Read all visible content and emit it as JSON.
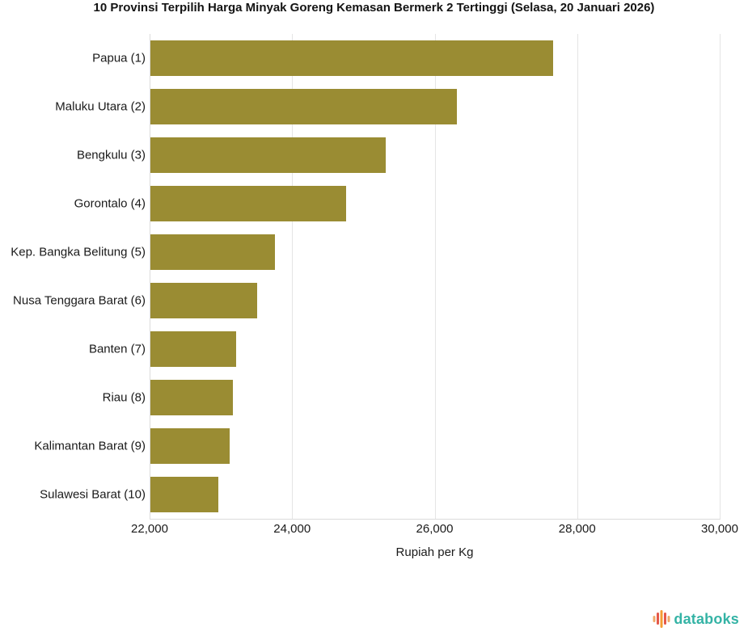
{
  "title": "10 Provinsi Terpilih Harga Minyak Goreng Kemasan Bermerk 2 Tertinggi (Selasa, 20 Januari 2026)",
  "chart_data": {
    "type": "bar",
    "orientation": "horizontal",
    "categories": [
      "Papua (1)",
      "Maluku Utara (2)",
      "Bengkulu (3)",
      "Gorontalo (4)",
      "Kep. Bangka Belitung (5)",
      "Nusa Tenggara Barat (6)",
      "Banten (7)",
      "Riau (8)",
      "Kalimantan Barat (9)",
      "Sulawesi Barat (10)"
    ],
    "values": [
      27650,
      26300,
      25300,
      24750,
      23750,
      23500,
      23200,
      23160,
      23110,
      22950
    ],
    "xlabel": "Rupiah per Kg",
    "xlim": [
      22000,
      30000
    ],
    "xticks": [
      22000,
      24000,
      26000,
      28000,
      30000
    ],
    "xtick_labels": [
      "22,000",
      "24,000",
      "26,000",
      "28,000",
      "30,000"
    ],
    "bar_color": "#9a8c33",
    "grid": true,
    "gridline_color": "#e5e5e5",
    "legend": "none"
  },
  "footer": {
    "brand": "databoks",
    "brand_color": "#34b3a5",
    "logo_icon": "equalizer-bars-icon",
    "icon_colors": [
      "#f0a868",
      "#e4584a",
      "#f59d33",
      "#e4584a",
      "#f0a868"
    ]
  }
}
